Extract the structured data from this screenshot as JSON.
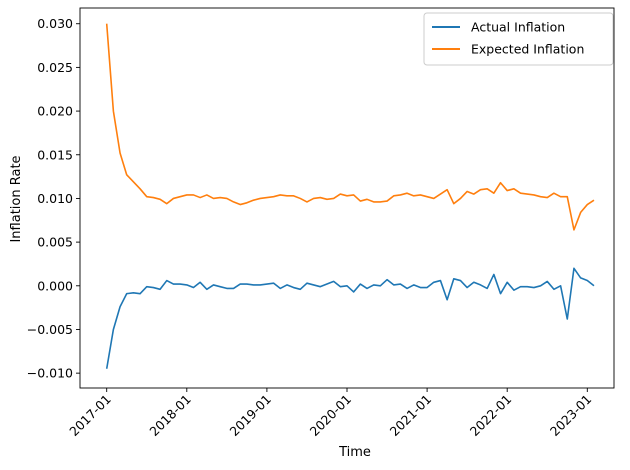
{
  "chart_data": {
    "type": "line",
    "title": "",
    "xlabel": "Time",
    "ylabel": "Inflation Rate",
    "x_start": "2017-01",
    "x_frequency": "monthly",
    "xlim": [
      "2016-09",
      "2023-05"
    ],
    "ylim": [
      -0.0117,
      0.0318
    ],
    "x_ticks": [
      "2017-01",
      "2018-01",
      "2019-01",
      "2020-01",
      "2021-01",
      "2022-01",
      "2023-01"
    ],
    "y_ticks": [
      "−0.010",
      "−0.005",
      "0.000",
      "0.005",
      "0.010",
      "0.015",
      "0.020",
      "0.025",
      "0.030"
    ],
    "y_tick_values": [
      -0.01,
      -0.005,
      0.0,
      0.005,
      0.01,
      0.015,
      0.02,
      0.025,
      0.03
    ],
    "grid": false,
    "legend_position": "top-right",
    "series": [
      {
        "name": "Actual Inflation",
        "color": "#1f77b4",
        "values": [
          -0.0095,
          -0.005,
          -0.0024,
          -0.0009,
          -0.0008,
          -0.0009,
          -0.0001,
          -0.0002,
          -0.0004,
          0.0006,
          0.0002,
          0.0002,
          0.0001,
          -0.0002,
          0.0004,
          -0.0004,
          0.0001,
          -0.0001,
          -0.0003,
          -0.0003,
          0.0002,
          0.0002,
          0.0001,
          0.0001,
          0.0002,
          0.0003,
          -0.0003,
          0.0001,
          -0.0002,
          -0.0004,
          0.0003,
          0.0001,
          -0.0001,
          0.0002,
          0.0005,
          -0.0001,
          0.0,
          -0.0007,
          0.0002,
          -0.0003,
          0.0001,
          0.0,
          0.0007,
          0.0001,
          0.0002,
          -0.0003,
          0.0001,
          -0.0002,
          -0.0002,
          0.0004,
          0.0006,
          -0.0016,
          0.0008,
          0.0006,
          -0.0002,
          0.0004,
          0.0001,
          -0.0003,
          0.0013,
          -0.0009,
          0.0004,
          -0.0005,
          -0.0001,
          -0.0001,
          -0.0002,
          0.0,
          0.0005,
          -0.0004,
          0.0,
          -0.0038,
          0.002,
          0.0009,
          0.0006,
          0.0
        ]
      },
      {
        "name": "Expected Inflation",
        "color": "#ff7f0e",
        "values": [
          0.03,
          0.02,
          0.0152,
          0.0127,
          0.0119,
          0.0111,
          0.0102,
          0.0101,
          0.0099,
          0.0094,
          0.01,
          0.0102,
          0.0104,
          0.0104,
          0.0101,
          0.0104,
          0.01,
          0.0101,
          0.01,
          0.0096,
          0.0093,
          0.0095,
          0.0098,
          0.01,
          0.0101,
          0.0102,
          0.0104,
          0.0103,
          0.0103,
          0.01,
          0.0096,
          0.01,
          0.0101,
          0.0099,
          0.01,
          0.0105,
          0.0103,
          0.0104,
          0.0097,
          0.0099,
          0.0096,
          0.0096,
          0.0097,
          0.0103,
          0.0104,
          0.0106,
          0.0103,
          0.0104,
          0.0102,
          0.01,
          0.0105,
          0.011,
          0.0094,
          0.01,
          0.0108,
          0.0105,
          0.011,
          0.0111,
          0.0106,
          0.0118,
          0.0109,
          0.0111,
          0.0106,
          0.0105,
          0.0104,
          0.0102,
          0.0101,
          0.0106,
          0.0102,
          0.0102,
          0.0064,
          0.0084,
          0.0093,
          0.0098
        ]
      }
    ]
  }
}
